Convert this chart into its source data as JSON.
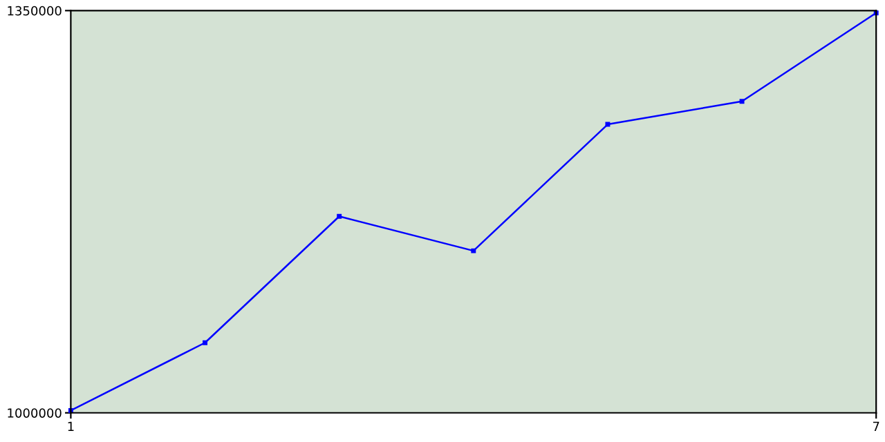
{
  "chart_data": {
    "type": "line",
    "x": [
      1,
      2,
      3,
      4,
      5,
      6,
      7
    ],
    "series": [
      {
        "color": "#0000ff",
        "values": [
          1002000,
          1061000,
          1171000,
          1141000,
          1251000,
          1271000,
          1348000
        ]
      }
    ],
    "xlim": [
      1,
      7
    ],
    "xticks": [
      1,
      7
    ],
    "ylim": [
      1000000,
      1350000
    ],
    "yticks": [
      1000000,
      1350000
    ],
    "grid": false,
    "marker": "square",
    "line_style": "solid"
  }
}
